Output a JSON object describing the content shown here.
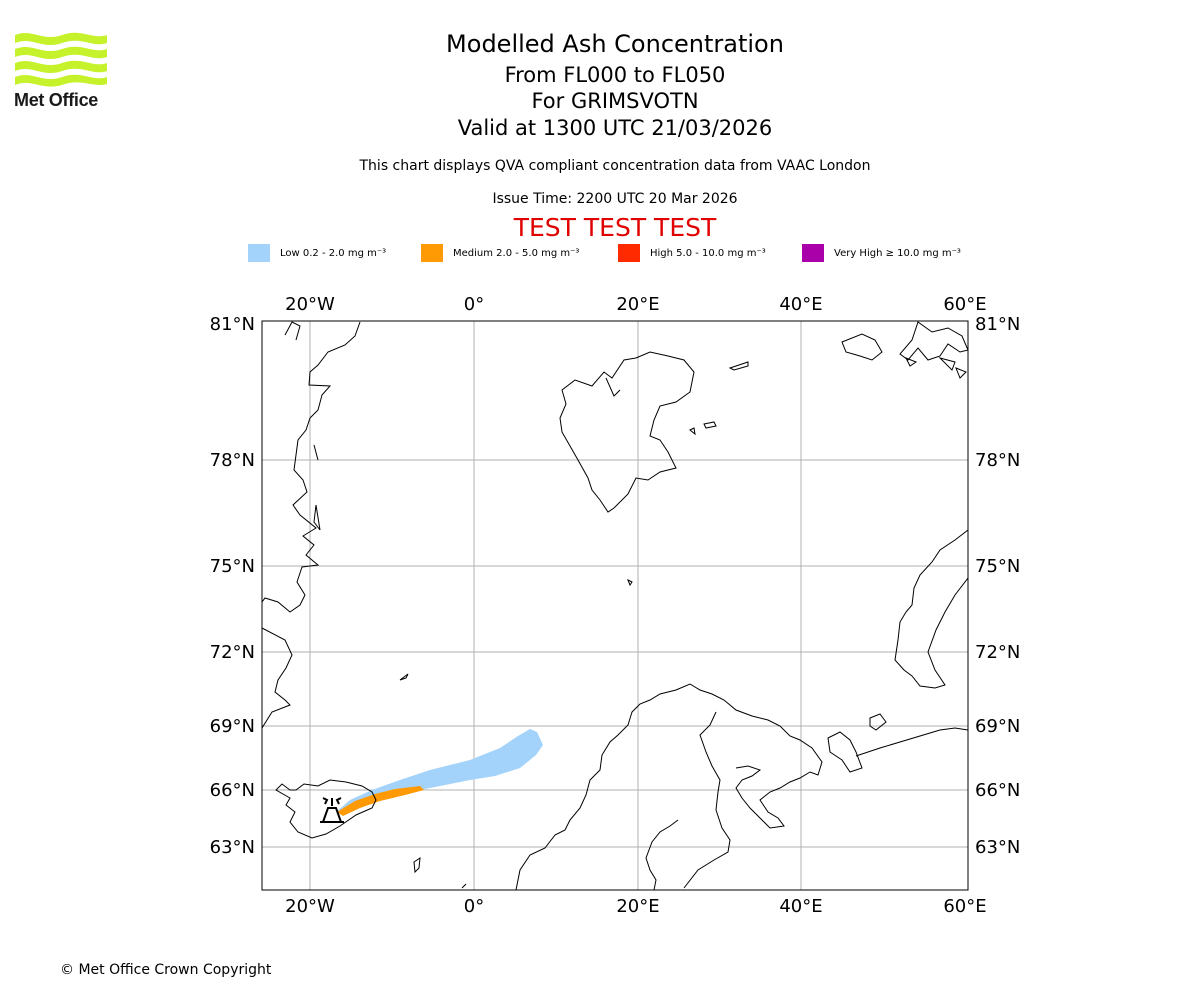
{
  "logo": {
    "name": "Met Office"
  },
  "titles": {
    "main": "Modelled Ash Concentration",
    "levels": "From FL000 to FL050",
    "volcano": "For GRIMSVOTN",
    "valid": "Valid at 1300 UTC 21/03/2026",
    "note": "This chart displays QVA compliant concentration data from VAAC London",
    "issue": "Issue Time: 2200 UTC 20 Mar 2026",
    "test": "TEST TEST TEST"
  },
  "legend": [
    {
      "label": "Low 0.2 - 2.0 mg m⁻³",
      "color": "#a3d2fb"
    },
    {
      "label": "Medium 2.0 - 5.0 mg m⁻³",
      "color": "#ff9a05"
    },
    {
      "label": "High 5.0 - 10.0 mg m⁻³",
      "color": "#ff2a00"
    },
    {
      "label": "Very High ≥ 10.0 mg m⁻³",
      "color": "#aa00aa"
    }
  ],
  "map": {
    "lon_labels": [
      "20°W",
      "0°",
      "20°E",
      "40°E",
      "60°E"
    ],
    "lat_labels": [
      "81°N",
      "78°N",
      "75°N",
      "72°N",
      "69°N",
      "66°N",
      "63°N"
    ],
    "gridlines": true,
    "volcano_symbol": "volcano-icon"
  },
  "footer": {
    "copyright": "© Met Office Crown Copyright"
  }
}
